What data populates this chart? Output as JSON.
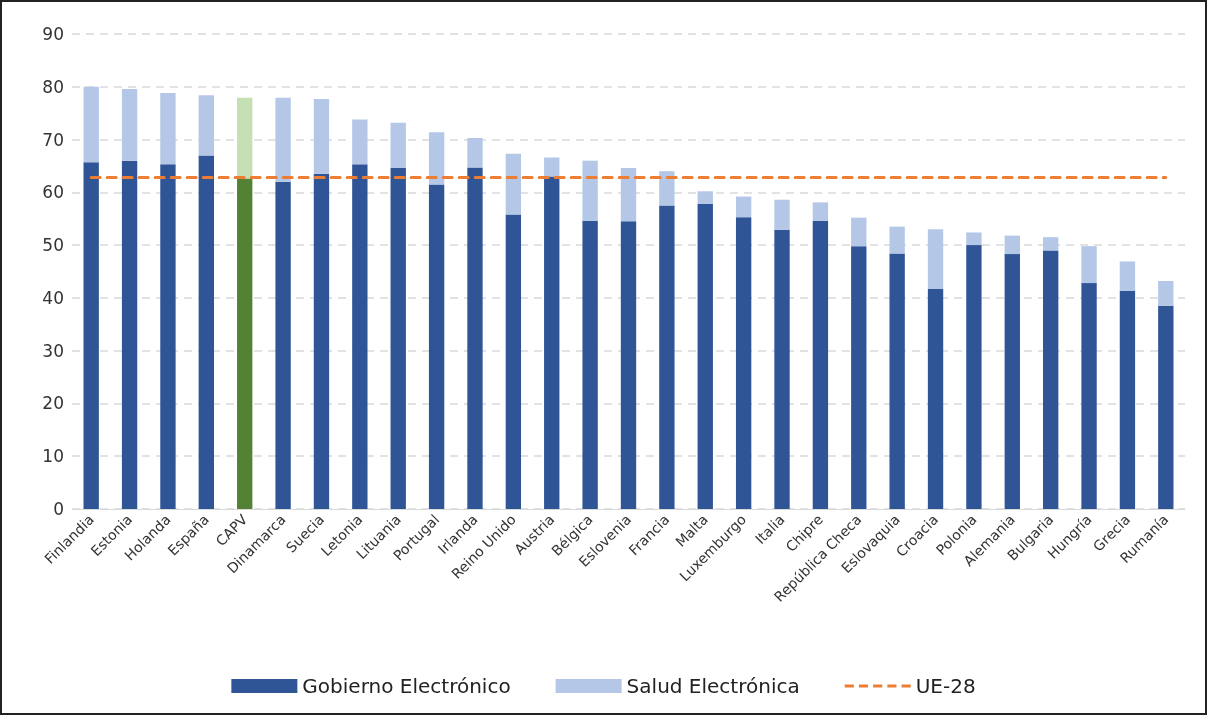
{
  "chart_data": {
    "type": "bar",
    "stacked": true,
    "categories": [
      "Finlandia",
      "Estonia",
      "Holanda",
      "España",
      "CAPV",
      "Dinamarca",
      "Suecia",
      "Letonia",
      "Lituania",
      "Portugal",
      "Irlanda",
      "Reino Unido",
      "Austria",
      "Bélgica",
      "Eslovenia",
      "Francia",
      "Malta",
      "Luxemburgo",
      "Italia",
      "Chipre",
      "República Checa",
      "Eslovaquia",
      "Croacia",
      "Polonia",
      "Alemania",
      "Bulgaria",
      "Hungría",
      "Grecia",
      "Rumanía"
    ],
    "series": [
      {
        "name": "Gobierno Electrónico",
        "color": "#2f5597",
        "colors": [
          "#2f5597",
          "#2f5597",
          "#2f5597",
          "#2f5597",
          "#548235",
          "#2f5597",
          "#2f5597",
          "#2f5597",
          "#2f5597",
          "#2f5597",
          "#2f5597",
          "#2f5597",
          "#2f5597",
          "#2f5597",
          "#2f5597",
          "#2f5597",
          "#2f5597",
          "#2f5597",
          "#2f5597",
          "#2f5597",
          "#2f5597",
          "#2f5597",
          "#2f5597",
          "#2f5597",
          "#2f5597",
          "#2f5597",
          "#2f5597",
          "#2f5597",
          "#2f5597"
        ],
        "values": [
          65.7,
          66,
          65.3,
          67,
          62.6,
          62,
          63.5,
          65.3,
          64.6,
          61.5,
          64.7,
          55.8,
          63,
          54.6,
          54.5,
          57.5,
          57.8,
          55.3,
          52.9,
          54.6,
          49.8,
          48.4,
          41.7,
          50,
          48.3,
          49,
          42.8,
          41.3,
          38.5
        ]
      },
      {
        "name": "Salud Electrónica",
        "color": "#b4c7e7",
        "colors": [
          "#b4c7e7",
          "#b4c7e7",
          "#b4c7e7",
          "#b4c7e7",
          "#c5e0b4",
          "#b4c7e7",
          "#b4c7e7",
          "#b4c7e7",
          "#b4c7e7",
          "#b4c7e7",
          "#b4c7e7",
          "#b4c7e7",
          "#b4c7e7",
          "#b4c7e7",
          "#b4c7e7",
          "#b4c7e7",
          "#b4c7e7",
          "#b4c7e7",
          "#b4c7e7",
          "#b4c7e7",
          "#b4c7e7",
          "#b4c7e7",
          "#b4c7e7",
          "#b4c7e7",
          "#b4c7e7",
          "#b4c7e7",
          "#b4c7e7",
          "#b4c7e7",
          "#b4c7e7"
        ],
        "values": [
          14.3,
          13.6,
          13.5,
          11.4,
          15.3,
          15.9,
          14.2,
          8.5,
          8.6,
          9.9,
          5.6,
          11.5,
          3.6,
          11.4,
          10.1,
          6.5,
          2.4,
          3.9,
          5.7,
          3.5,
          5.4,
          5.1,
          11.3,
          2.4,
          3.5,
          2.5,
          7,
          5.6,
          4.7
        ]
      }
    ],
    "ref_lines": [
      {
        "axis": "y",
        "value": 62.8,
        "label": "UE-28",
        "color": "#ed7d31",
        "line_style": "dashed"
      }
    ],
    "ylim": [
      0,
      90
    ],
    "yticks": [
      0,
      10,
      20,
      30,
      40,
      50,
      60,
      70,
      80,
      90
    ],
    "grid": "y",
    "legend": "bottom"
  }
}
